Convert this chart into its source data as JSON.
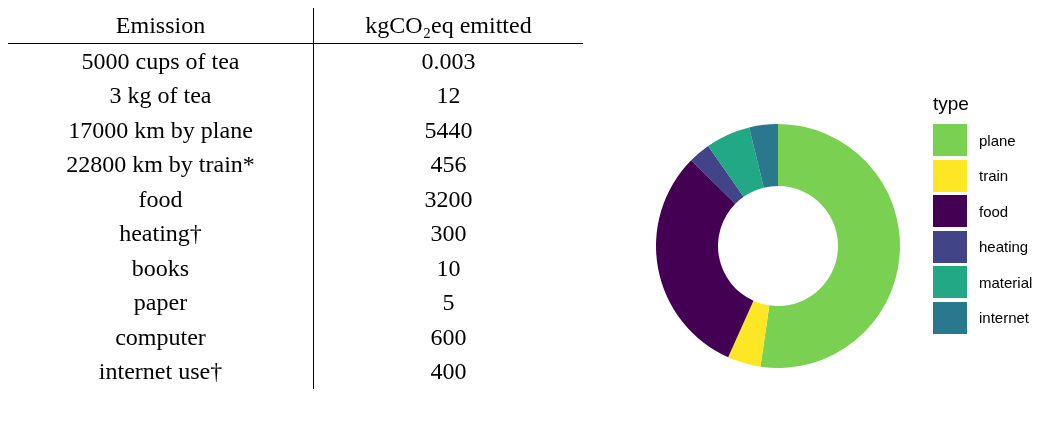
{
  "chart_data": [
    {
      "type": "other",
      "xlabel": "Emission",
      "ylabel": "kgCO₂eq emitted",
      "categories": [
        "5000 cups of tea",
        "3 kg of tea",
        "17000 km by plane",
        "22800 km by train*",
        "food",
        "heating†",
        "books",
        "paper",
        "computer",
        "internet use†"
      ],
      "values": [
        0.003,
        12,
        5440,
        456,
        3200,
        300,
        10,
        5,
        600,
        400
      ],
      "data_labels": true
    },
    {
      "type": "donut",
      "legend_title": "type",
      "legend": "right",
      "categories": [
        "plane",
        "train",
        "food",
        "heating",
        "material",
        "internet"
      ],
      "values": [
        52.3,
        4.4,
        30.7,
        2.9,
        5.9,
        3.8
      ],
      "colors": [
        "#7ad151",
        "#fde725",
        "#440154",
        "#414487",
        "#22a884",
        "#2a788e"
      ]
    }
  ]
}
